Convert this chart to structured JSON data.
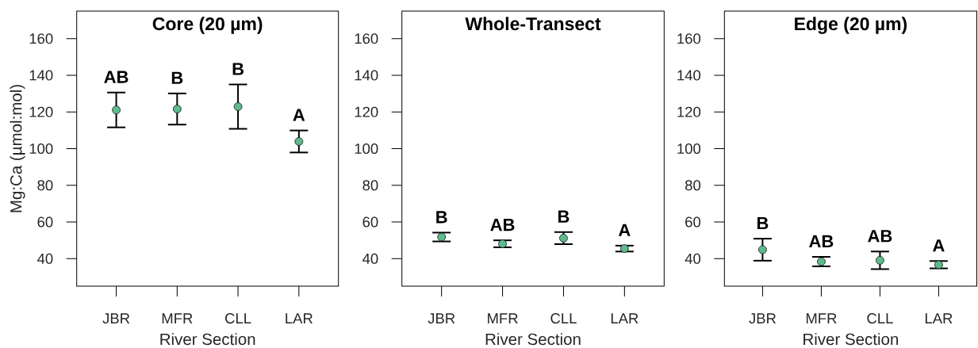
{
  "chart_data": [
    {
      "type": "scatter",
      "title": "Core (20 µm)",
      "xlabel": "River Section",
      "ylabel": "Mg:Ca (µmol:mol)",
      "categories": [
        "JBR",
        "MFR",
        "CLL",
        "LAR"
      ],
      "values": [
        121.1,
        121.6,
        122.9,
        103.9
      ],
      "errors": [
        9.5,
        8.5,
        12.1,
        6.0
      ],
      "color": "#5fba8c",
      "marker": "circle",
      "ylim": [
        25,
        175
      ],
      "yticks": [
        40,
        60,
        80,
        100,
        120,
        140,
        160
      ],
      "annotations": [
        "AB",
        "B",
        "B",
        "A"
      ]
    },
    {
      "type": "scatter",
      "title": "Whole-Transect",
      "xlabel": "River Section",
      "categories": [
        "JBR",
        "MFR",
        "CLL",
        "LAR"
      ],
      "values": [
        51.8,
        48.1,
        51.2,
        45.5
      ],
      "errors": [
        2.4,
        1.9,
        3.3,
        1.6
      ],
      "color": "#5fba8c",
      "marker": "circle",
      "ylim": [
        25,
        175
      ],
      "yticks": [
        40,
        60,
        80,
        100,
        120,
        140,
        160
      ],
      "annotations": [
        "B",
        "AB",
        "B",
        "A"
      ]
    },
    {
      "type": "scatter",
      "title": "Edge (20 µm)",
      "xlabel": "River Section",
      "categories": [
        "JBR",
        "MFR",
        "CLL",
        "LAR"
      ],
      "values": [
        44.9,
        38.4,
        39.1,
        36.7
      ],
      "errors": [
        6.0,
        2.6,
        4.8,
        2.0
      ],
      "color": "#5fba8c",
      "marker": "circle",
      "ylim": [
        25,
        175
      ],
      "yticks": [
        40,
        60,
        80,
        100,
        120,
        140,
        160
      ],
      "annotations": [
        "B",
        "AB",
        "AB",
        "A"
      ]
    }
  ]
}
